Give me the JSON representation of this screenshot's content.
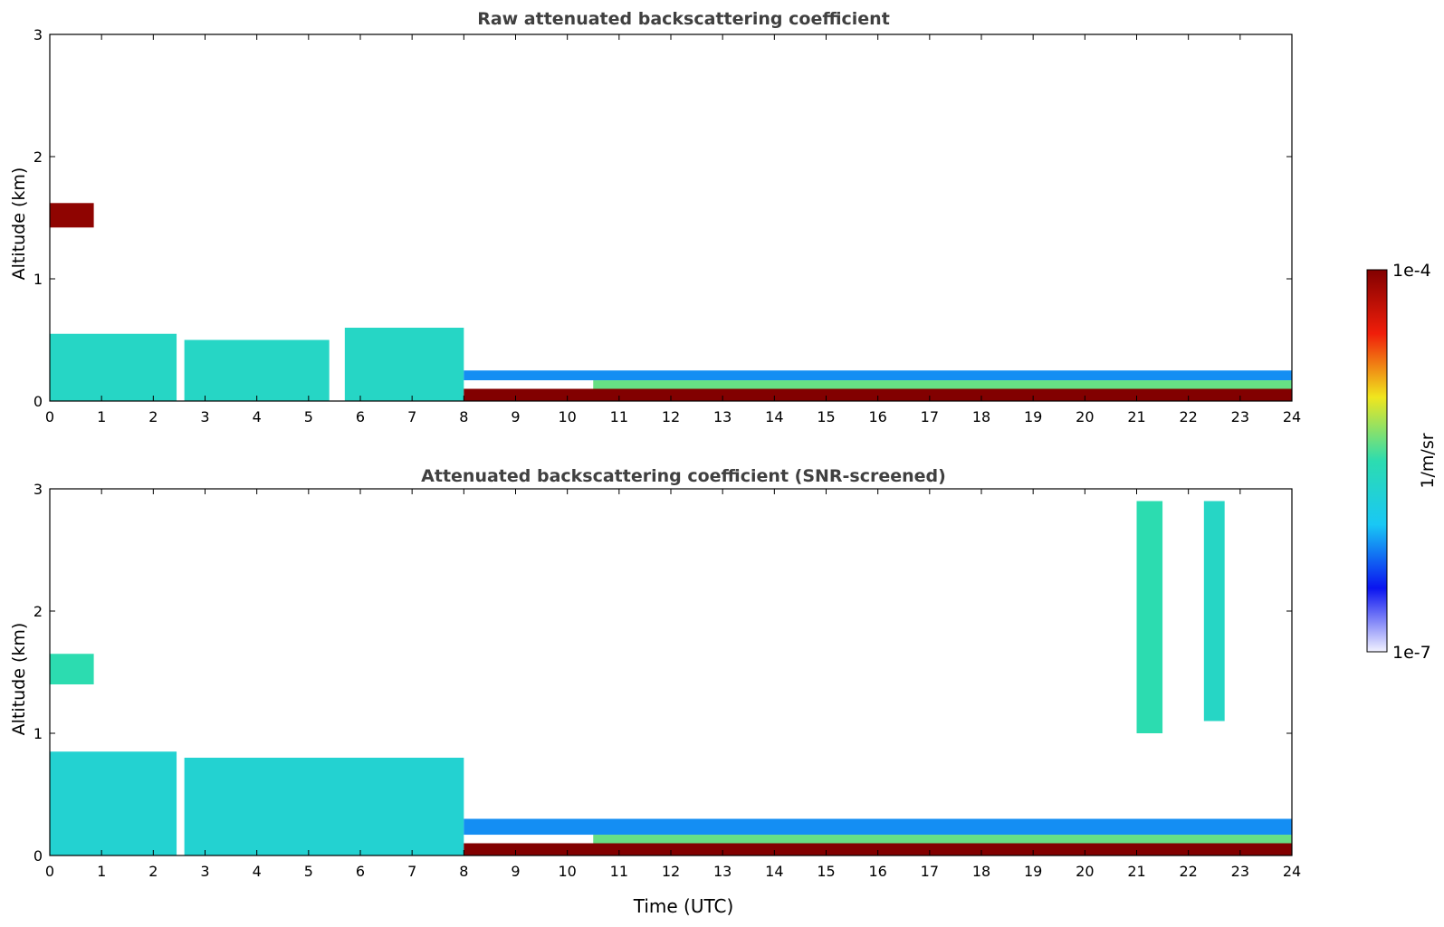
{
  "chart_data": [
    {
      "type": "heatmap",
      "title": "Raw attenuated backscattering coefficient",
      "xlabel": "",
      "ylabel": "Altitude (km)",
      "xlim": [
        0,
        24
      ],
      "ylim": [
        0,
        3
      ],
      "x_ticks": [
        "0",
        "1",
        "2",
        "3",
        "4",
        "5",
        "6",
        "7",
        "8",
        "9",
        "10",
        "11",
        "12",
        "13",
        "14",
        "15",
        "16",
        "17",
        "18",
        "19",
        "20",
        "21",
        "22",
        "23",
        "24"
      ],
      "y_ticks": [
        "0",
        "1",
        "2",
        "3"
      ],
      "layers": [
        {
          "x": [
            0.0,
            2.45
          ],
          "y": [
            0.0,
            0.55
          ],
          "level": 0.45
        },
        {
          "x": [
            2.6,
            5.4
          ],
          "y": [
            0.0,
            0.5
          ],
          "level": 0.45
        },
        {
          "x": [
            5.7,
            8.0
          ],
          "y": [
            0.0,
            0.6
          ],
          "level": 0.45
        },
        {
          "x": [
            8.0,
            24.0
          ],
          "y": [
            0.0,
            0.1
          ],
          "level": 1.0
        },
        {
          "x": [
            10.5,
            24.0
          ],
          "y": [
            0.1,
            0.17
          ],
          "level": 0.55
        },
        {
          "x": [
            8.0,
            24.0
          ],
          "y": [
            0.17,
            0.25
          ],
          "level": 0.28
        },
        {
          "x": [
            0.0,
            0.85
          ],
          "y": [
            1.42,
            1.62
          ],
          "level": 0.98
        }
      ]
    },
    {
      "type": "heatmap",
      "title": "Attenuated backscattering coefficient (SNR-screened)",
      "xlabel": "Time (UTC)",
      "ylabel": "Altitude (km)",
      "xlim": [
        0,
        24
      ],
      "ylim": [
        0,
        3
      ],
      "x_ticks": [
        "0",
        "1",
        "2",
        "3",
        "4",
        "5",
        "6",
        "7",
        "8",
        "9",
        "10",
        "11",
        "12",
        "13",
        "14",
        "15",
        "16",
        "17",
        "18",
        "19",
        "20",
        "21",
        "22",
        "23",
        "24"
      ],
      "y_ticks": [
        "0",
        "1",
        "2",
        "3"
      ],
      "layers": [
        {
          "x": [
            0.0,
            2.45
          ],
          "y": [
            0.0,
            0.85
          ],
          "level": 0.42
        },
        {
          "x": [
            2.6,
            8.0
          ],
          "y": [
            0.0,
            0.8
          ],
          "level": 0.42
        },
        {
          "x": [
            8.0,
            24.0
          ],
          "y": [
            0.0,
            0.1
          ],
          "level": 1.0
        },
        {
          "x": [
            10.5,
            24.0
          ],
          "y": [
            0.1,
            0.17
          ],
          "level": 0.55
        },
        {
          "x": [
            8.0,
            24.0
          ],
          "y": [
            0.17,
            0.3
          ],
          "level": 0.28
        },
        {
          "x": [
            0.0,
            0.85
          ],
          "y": [
            1.4,
            1.65
          ],
          "level": 0.5
        },
        {
          "x": [
            21.0,
            21.5
          ],
          "y": [
            1.0,
            2.9
          ],
          "level": 0.5
        },
        {
          "x": [
            22.3,
            22.7
          ],
          "y": [
            1.1,
            2.9
          ],
          "level": 0.45
        }
      ]
    }
  ],
  "colorbar": {
    "label": "1/m/sr",
    "min_label": "1e-7",
    "max_label": "1e-4",
    "stops": [
      "#f2f2ff",
      "#0a14f0",
      "#19c8f5",
      "#2cdcb0",
      "#f0e61e",
      "#f01e0a",
      "#820000"
    ]
  }
}
